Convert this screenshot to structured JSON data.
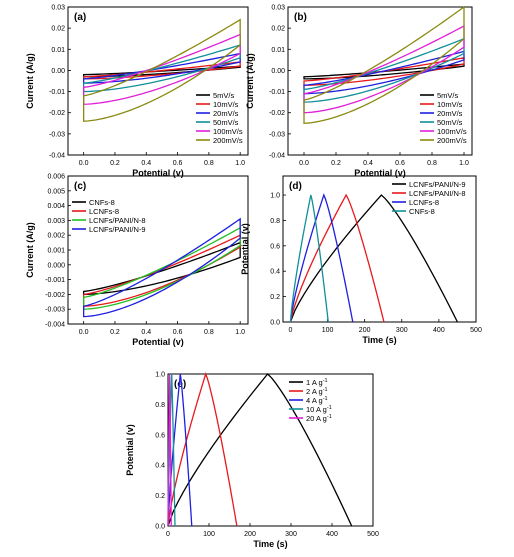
{
  "figure": {
    "panels": [
      {
        "id": "a"
      },
      {
        "id": "b"
      },
      {
        "id": "c"
      },
      {
        "id": "d"
      },
      {
        "id": "e"
      }
    ]
  },
  "chart_data": [
    {
      "panel": "(a)",
      "type": "line",
      "xlabel": "Potential (v)",
      "ylabel": "Current (A/g)",
      "xlim": [
        -0.1,
        1.05
      ],
      "ylim": [
        -0.04,
        0.03
      ],
      "xticks": [
        "0.0",
        "0.2",
        "0.4",
        "0.6",
        "0.8",
        "1.0"
      ],
      "yticks": [
        "0.03",
        "0.02",
        "0.01",
        "0.00",
        "-0.01",
        "-0.02",
        "-0.03",
        "-0.04"
      ],
      "legend_position": "bottom-right",
      "series": [
        {
          "name": "5mV/s",
          "color": "#000000",
          "values": {
            "upper_start": -0.002,
            "upper_end": 0.002,
            "lower_start": -0.003,
            "lower_end": 0.0015
          }
        },
        {
          "name": "10mV/s",
          "color": "#e8191b",
          "values": {
            "upper_start": -0.003,
            "upper_end": 0.004,
            "lower_start": -0.004,
            "lower_end": 0.002
          }
        },
        {
          "name": "20mV/s",
          "color": "#1f1fe0",
          "values": {
            "upper_start": -0.004,
            "upper_end": 0.008,
            "lower_start": -0.006,
            "lower_end": 0.004
          }
        },
        {
          "name": "50mV/s",
          "color": "#10909a",
          "values": {
            "upper_start": -0.006,
            "upper_end": 0.012,
            "lower_start": -0.01,
            "lower_end": 0.006
          }
        },
        {
          "name": "100mV/s",
          "color": "#e020d8",
          "values": {
            "upper_start": -0.008,
            "upper_end": 0.017,
            "lower_start": -0.016,
            "lower_end": 0.008
          }
        },
        {
          "name": "200mV/s",
          "color": "#8a8a10",
          "values": {
            "upper_start": -0.012,
            "upper_end": 0.024,
            "lower_start": -0.024,
            "lower_end": 0.012
          }
        }
      ]
    },
    {
      "panel": "(b)",
      "type": "line",
      "xlabel": "Potential (v)",
      "ylabel": "Current (A/g)",
      "xlim": [
        -0.1,
        1.05
      ],
      "ylim": [
        -0.04,
        0.03
      ],
      "xticks": [
        "0.0",
        "0.2",
        "0.4",
        "0.6",
        "0.8",
        "1.0"
      ],
      "yticks": [
        "0.03",
        "0.02",
        "0.01",
        "0.00",
        "-0.01",
        "-0.02",
        "-0.03",
        "-0.04"
      ],
      "legend_position": "bottom-right",
      "series": [
        {
          "name": "5mV/s",
          "color": "#000000",
          "values": {
            "upper_start": -0.003,
            "upper_end": 0.003,
            "lower_start": -0.004,
            "lower_end": 0.002
          }
        },
        {
          "name": "10mV/s",
          "color": "#e8191b",
          "values": {
            "upper_start": -0.005,
            "upper_end": 0.006,
            "lower_start": -0.007,
            "lower_end": 0.003
          }
        },
        {
          "name": "20mV/s",
          "color": "#1f1fe0",
          "values": {
            "upper_start": -0.007,
            "upper_end": 0.009,
            "lower_start": -0.011,
            "lower_end": 0.005
          }
        },
        {
          "name": "50mV/s",
          "color": "#10909a",
          "values": {
            "upper_start": -0.009,
            "upper_end": 0.015,
            "lower_start": -0.015,
            "lower_end": 0.008
          }
        },
        {
          "name": "100mV/s",
          "color": "#e020d8",
          "values": {
            "upper_start": -0.011,
            "upper_end": 0.021,
            "lower_start": -0.02,
            "lower_end": 0.011
          }
        },
        {
          "name": "200mV/s",
          "color": "#8a8a10",
          "values": {
            "upper_start": -0.014,
            "upper_end": 0.03,
            "lower_start": -0.025,
            "lower_end": 0.015
          }
        }
      ]
    },
    {
      "panel": "(c)",
      "type": "line",
      "xlabel": "Potential (v)",
      "ylabel": "Current (A/g)",
      "xlim": [
        -0.1,
        1.05
      ],
      "ylim": [
        -0.004,
        0.006
      ],
      "xticks": [
        "0.0",
        "0.2",
        "0.4",
        "0.6",
        "0.8",
        "1.0"
      ],
      "yticks": [
        "0.006",
        "0.005",
        "0.004",
        "0.003",
        "0.002",
        "0.001",
        "0.000",
        "-0.001",
        "-0.002",
        "-0.003",
        "-0.004"
      ],
      "legend_position": "top-left",
      "series": [
        {
          "name": "CNFs-8",
          "color": "#000000",
          "values": {
            "upper_start": -0.0018,
            "upper_end": 0.0015,
            "lower_start": -0.002,
            "lower_end": 0.0005
          }
        },
        {
          "name": "LCNFs-8",
          "color": "#e8191b",
          "values": {
            "upper_start": -0.002,
            "upper_end": 0.002,
            "lower_start": -0.0028,
            "lower_end": 0.0012
          }
        },
        {
          "name": "LCNFs/PANI/N-8",
          "color": "#22c022",
          "values": {
            "upper_start": -0.0022,
            "upper_end": 0.0025,
            "lower_start": -0.003,
            "lower_end": 0.0013
          }
        },
        {
          "name": "LCNFs/PANI/N-9",
          "color": "#1f1fe0",
          "values": {
            "upper_start": -0.0028,
            "upper_end": 0.0031,
            "lower_start": -0.0035,
            "lower_end": 0.0018
          }
        }
      ]
    },
    {
      "panel": "(d)",
      "type": "line",
      "xlabel": "Time (s)",
      "ylabel": "Potential (v)",
      "xlim": [
        -20,
        500
      ],
      "ylim": [
        0,
        1.15
      ],
      "xticks": [
        "0",
        "100",
        "200",
        "300",
        "400",
        "500"
      ],
      "yticks": [
        "1.0",
        "0.8",
        "0.6",
        "0.4",
        "0.2",
        "0.0"
      ],
      "legend_position": "top-right",
      "series": [
        {
          "name": "LCNFs/PANI/N-9",
          "color": "#000000",
          "x": [
            0,
            245,
            450
          ],
          "peak": 1.0
        },
        {
          "name": "LCNFs/PANI/N-8",
          "color": "#e8191b",
          "x": [
            0,
            150,
            252
          ],
          "peak": 1.0
        },
        {
          "name": "LCNFs-8",
          "color": "#1f1fe0",
          "x": [
            0,
            90,
            168
          ],
          "peak": 1.0
        },
        {
          "name": "CNFs-8",
          "color": "#10909a",
          "x": [
            0,
            55,
            102
          ],
          "peak": 1.0
        }
      ]
    },
    {
      "panel": "(e)",
      "type": "line",
      "xlabel": "Time (s)",
      "ylabel": "Potential (v)",
      "xlim": [
        0,
        500
      ],
      "ylim": [
        0,
        1.0
      ],
      "xticks": [
        "0",
        "100",
        "200",
        "300",
        "400",
        "500"
      ],
      "yticks": [
        "1.0",
        "0.8",
        "0.6",
        "0.4",
        "0.2",
        "0.0"
      ],
      "legend_position": "top-right",
      "legend_entries": [
        {
          "label": "1 A g",
          "sup": "-1"
        },
        {
          "label": "2 A g",
          "sup": "-1"
        },
        {
          "label": "4 A g",
          "sup": "-1"
        },
        {
          "label": "10 A g",
          "sup": "-1"
        },
        {
          "label": "20 A g",
          "sup": "-1"
        }
      ],
      "series": [
        {
          "name": "1 A g-1",
          "color": "#000000",
          "x": [
            0,
            243,
            448
          ],
          "peak": 1.0
        },
        {
          "name": "2 A g-1",
          "color": "#e8191b",
          "x": [
            0,
            92,
            168
          ],
          "peak": 1.0
        },
        {
          "name": "4 A g-1",
          "color": "#1f1fe0",
          "x": [
            0,
            30,
            58
          ],
          "peak": 1.0
        },
        {
          "name": "10 A g-1",
          "color": "#10909a",
          "x": [
            0,
            9,
            17
          ],
          "peak": 1.0
        },
        {
          "name": "20 A g-1",
          "color": "#e020d8",
          "x": [
            0,
            4,
            8
          ],
          "peak": 1.0
        }
      ]
    }
  ]
}
